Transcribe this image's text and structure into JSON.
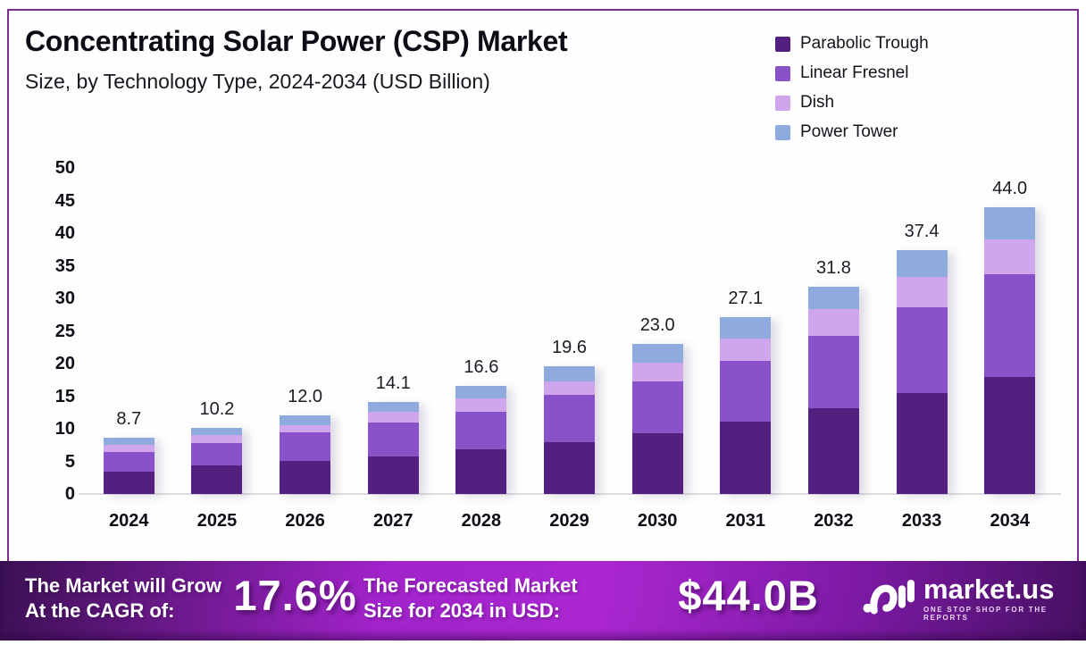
{
  "chart_data": {
    "type": "bar",
    "stacked": true,
    "title": "Concentrating Solar Power (CSP) Market",
    "subtitle": "Size, by Technology Type, 2024-2034 (USD Billion)",
    "xlabel": "",
    "ylabel": "",
    "ylim": [
      0,
      50
    ],
    "yticks": [
      0,
      5,
      10,
      15,
      20,
      25,
      30,
      35,
      40,
      45,
      50
    ],
    "grid": false,
    "legend_position": "top-right",
    "categories": [
      "2024",
      "2025",
      "2026",
      "2027",
      "2028",
      "2029",
      "2030",
      "2031",
      "2032",
      "2033",
      "2034"
    ],
    "series": [
      {
        "name": "Parabolic Trough",
        "color": "#53207f",
        "values": [
          3.4,
          4.4,
          5.1,
          5.8,
          6.8,
          8.0,
          9.3,
          11.1,
          13.2,
          15.5,
          18.0
        ]
      },
      {
        "name": "Linear Fresnel",
        "color": "#8a52c8",
        "values": [
          3.0,
          3.4,
          4.3,
          5.1,
          5.8,
          7.2,
          8.0,
          9.3,
          11.1,
          13.2,
          15.7
        ]
      },
      {
        "name": "Dish",
        "color": "#cfa5eb",
        "values": [
          1.2,
          1.2,
          1.2,
          1.7,
          2.1,
          2.1,
          2.9,
          3.5,
          4.0,
          4.6,
          5.3
        ]
      },
      {
        "name": "Power Tower",
        "color": "#8fabdd",
        "values": [
          1.1,
          1.2,
          1.4,
          1.5,
          1.9,
          2.3,
          2.8,
          3.2,
          3.5,
          4.1,
          5.0
        ]
      }
    ],
    "totals": [
      8.7,
      10.2,
      12.0,
      14.1,
      16.6,
      19.6,
      23.0,
      27.1,
      31.8,
      37.4,
      44.0
    ],
    "total_labels": [
      "8.7",
      "10.2",
      "12.0",
      "14.1",
      "16.6",
      "19.6",
      "23.0",
      "27.1",
      "31.8",
      "37.4",
      "44.0"
    ]
  },
  "banner": {
    "cagr_label_line1": "The Market will Grow",
    "cagr_label_line2": "At the CAGR of:",
    "cagr_value": "17.6%",
    "forecast_label_line1": "The Forecasted Market",
    "forecast_label_line2": "Size for 2034 in USD:",
    "forecast_value": "$44.0B",
    "logo_text": "market.us",
    "logo_tagline": "ONE STOP SHOP FOR THE REPORTS",
    "gradient": [
      "#3b1053",
      "#a123ca",
      "#ab27d1",
      "#7e1aa6",
      "#451061"
    ]
  },
  "colors": {
    "frame_border": "#7f2c92",
    "axis_line": "#dcdce2",
    "text_dark": "#0e0e16",
    "banner_text": "#ffffff"
  }
}
